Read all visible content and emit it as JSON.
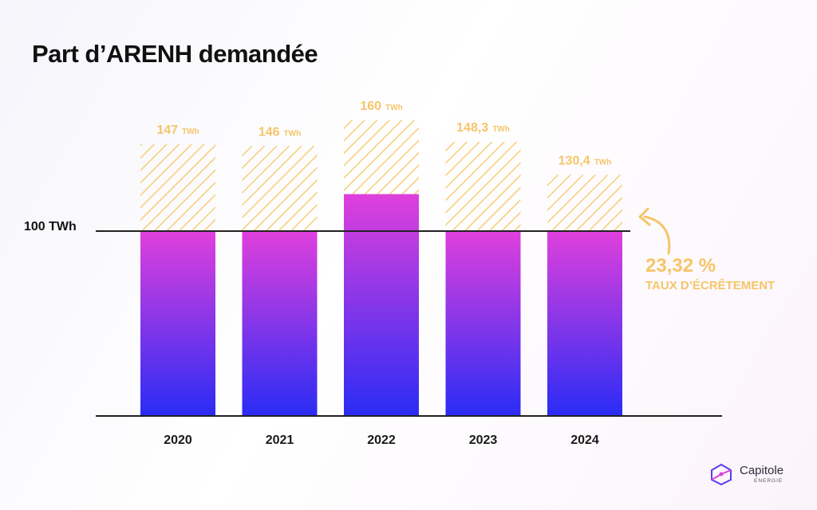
{
  "title": "Part d’ARENH demandée",
  "chart_data": {
    "type": "bar",
    "categories": [
      "2020",
      "2021",
      "2022",
      "2023",
      "2024"
    ],
    "series": [
      {
        "values": [
          147,
          146,
          160,
          148.3,
          130.4
        ]
      }
    ],
    "allocated": [
      100,
      100,
      120,
      100,
      100
    ],
    "value_labels": [
      "147",
      "146",
      "160",
      "148,3",
      "130,4"
    ],
    "unit": "TWh",
    "reference_line": {
      "value": 100,
      "label": "100 TWh"
    },
    "ylim": [
      0,
      160
    ],
    "annotation": {
      "value": "23,32 %",
      "label": "TAUX D’ÉCRÊTEMENT"
    },
    "colors": {
      "bar_top": "#e040dc",
      "bar_bottom": "#2a2cf5",
      "hatch": "#f7cd78",
      "label": "#f5c56a",
      "axis": "#222222"
    }
  },
  "logo": {
    "name": "Capitole",
    "sub": "ENERGIE"
  }
}
